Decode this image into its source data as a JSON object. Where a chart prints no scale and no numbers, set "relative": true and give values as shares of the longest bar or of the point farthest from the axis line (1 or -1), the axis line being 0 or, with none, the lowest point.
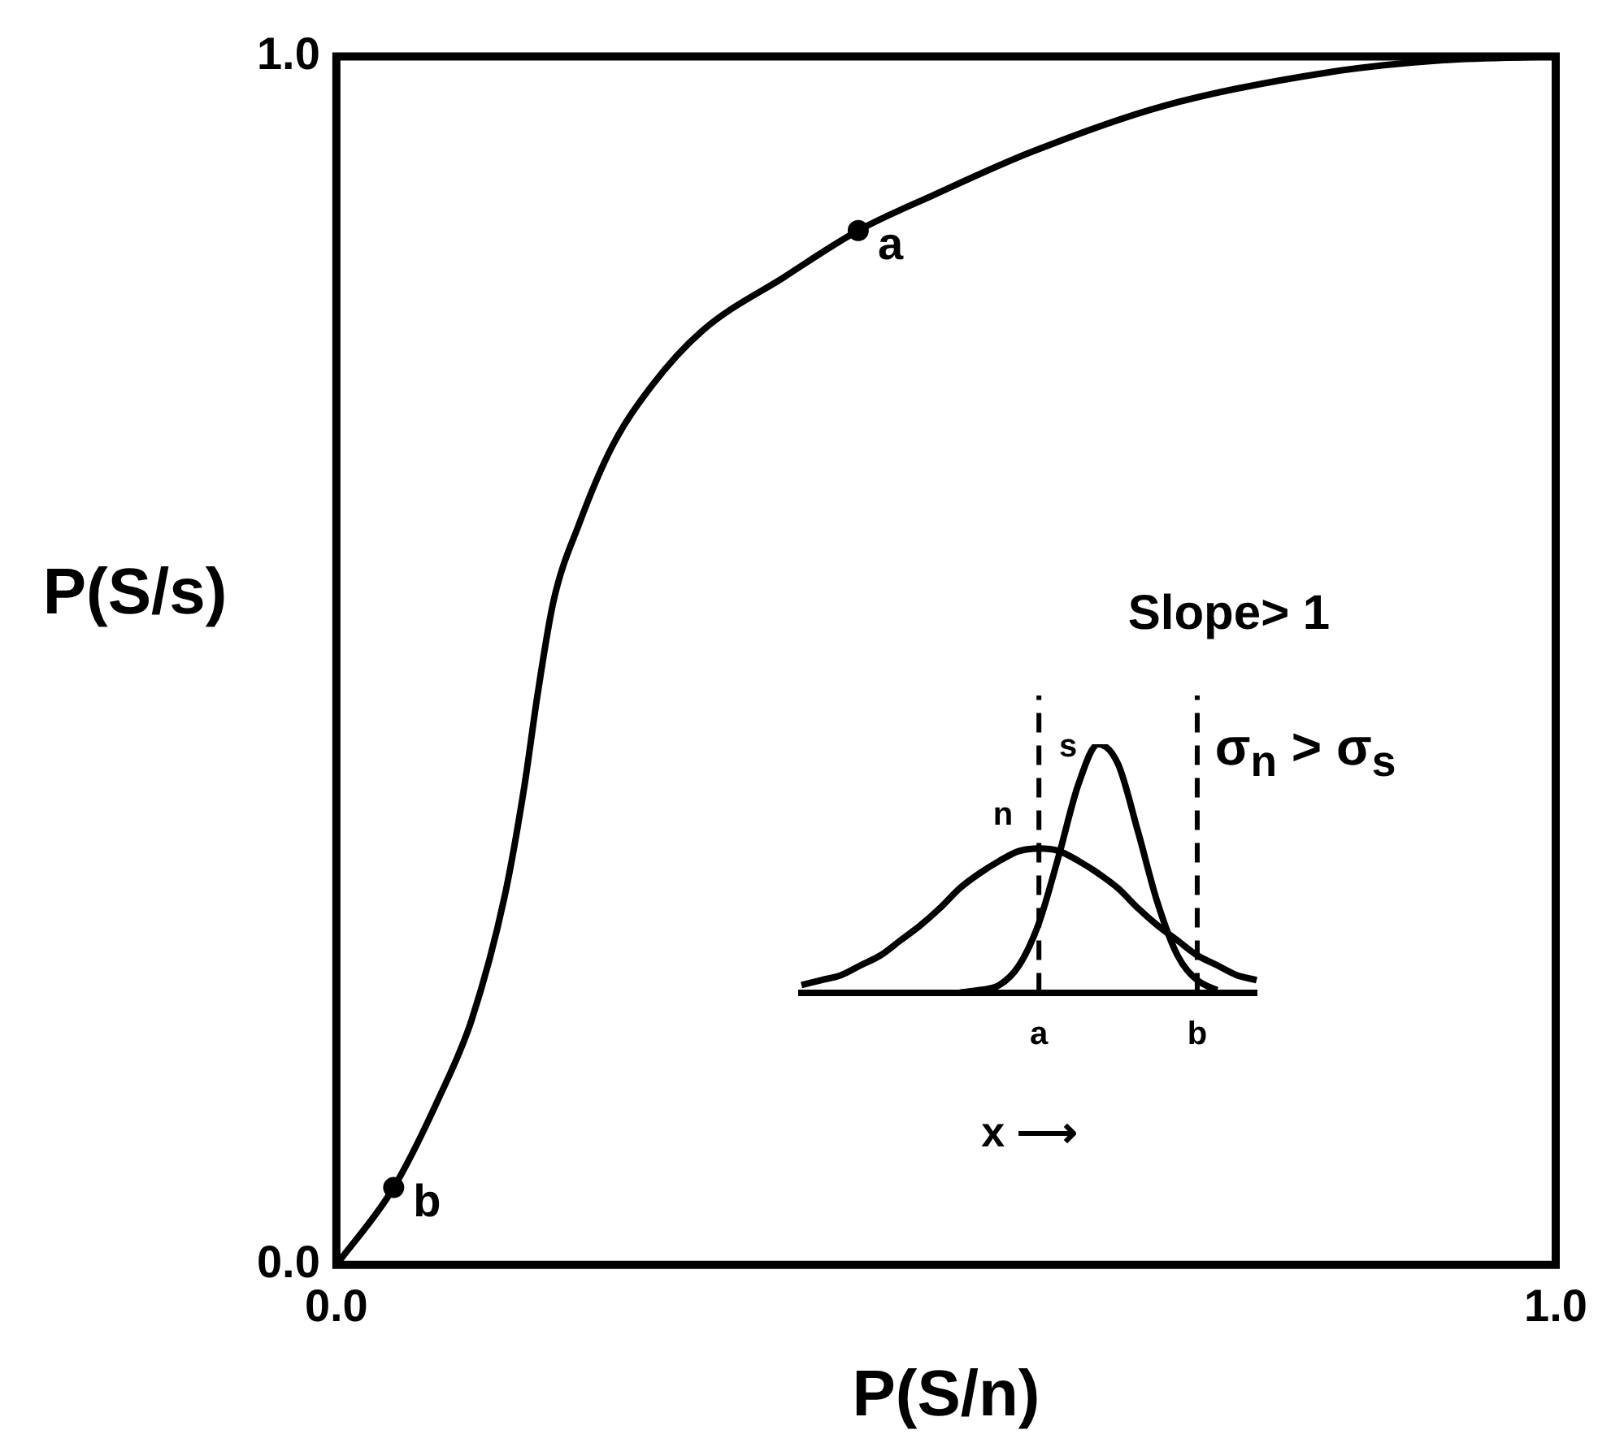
{
  "chart_data": [
    {
      "type": "line",
      "xlabel": "P(S/n)",
      "ylabel": "P(S/s)",
      "xlim": [
        0,
        1
      ],
      "ylim": [
        0,
        1
      ],
      "xticks": [
        {
          "value": 0,
          "label": "0.0"
        },
        {
          "value": 1,
          "label": "1.0"
        }
      ],
      "yticks": [
        {
          "value": 0,
          "label": "0.0"
        },
        {
          "value": 1,
          "label": "1.0"
        }
      ],
      "series": [
        {
          "color": "#000000",
          "marker": "none",
          "x": [
            0,
            0.047,
            0.084,
            0.111,
            0.138,
            0.154,
            0.165,
            0.178,
            0.199,
            0.226,
            0.259,
            0.3,
            0.368,
            0.428,
            0.489,
            0.57,
            0.678,
            0.814,
            0.908,
            1
          ],
          "values": [
            0,
            0.064,
            0.138,
            0.203,
            0.305,
            0.395,
            0.472,
            0.549,
            0.613,
            0.677,
            0.728,
            0.773,
            0.818,
            0.856,
            0.885,
            0.921,
            0.959,
            0.987,
            0.997,
            1
          ]
        },
        {
          "type": "scatter",
          "color": "#000000",
          "marker": "circle",
          "x": [
            0.047,
            0.428
          ],
          "values": [
            0.064,
            0.856
          ]
        }
      ],
      "annotations": [
        {
          "text": "a",
          "x": 0.428,
          "y": 0.856
        },
        {
          "text": "b",
          "x": 0.047,
          "y": 0.064
        },
        "Slope> 1",
        "σ$_{n}$ > σ$_{s}$"
      ]
    },
    {
      "type": "line",
      "relative": true,
      "xlabel": "x ⟶",
      "tick_labels": "x",
      "categories": [
        null,
        null,
        null,
        null,
        null,
        null,
        null,
        null,
        null,
        null,
        null,
        null,
        "a",
        null,
        null,
        null,
        null,
        null,
        null,
        null,
        "b",
        null,
        null,
        null
      ],
      "series": [
        {
          "name": "n",
          "color": "#000000",
          "values": [
            0.03,
            0.05,
            0.07,
            0.11,
            0.15,
            0.21,
            0.27,
            0.34,
            0.42,
            0.48,
            0.53,
            0.57,
            0.58,
            0.57,
            0.53,
            0.48,
            0.42,
            0.34,
            0.27,
            0.21,
            0.15,
            0.11,
            0.07,
            0.05
          ]
        },
        {
          "name": "s",
          "color": "#000000",
          "values": [
            null,
            null,
            null,
            null,
            null,
            null,
            null,
            null,
            0,
            0.01,
            0.03,
            0.11,
            0.28,
            0.55,
            0.84,
            1,
            0.92,
            0.65,
            0.36,
            0.15,
            0.05,
            0.01,
            null,
            null
          ]
        }
      ],
      "ref_lines": [
        {
          "axis": "x",
          "value": "a",
          "line_style": "dashed"
        },
        {
          "axis": "x",
          "value": "b",
          "line_style": "dashed"
        }
      ]
    }
  ]
}
